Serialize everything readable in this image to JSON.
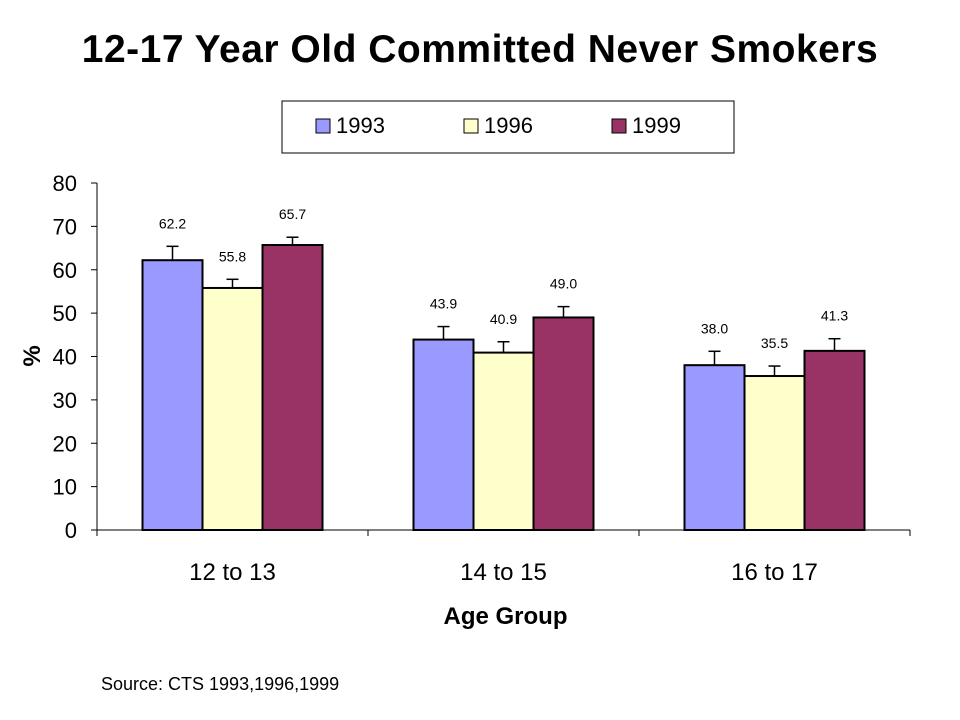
{
  "title": "12-17 Year Old Committed Never Smokers",
  "source": "Source:  CTS 1993,1996,1999",
  "chart_data": {
    "type": "bar",
    "title": "12-17 Year Old Committed Never Smokers",
    "xlabel": "Age Group",
    "ylabel": "%",
    "ylim": [
      0,
      80
    ],
    "yticks": [
      0,
      10,
      20,
      30,
      40,
      50,
      60,
      70,
      80
    ],
    "categories": [
      "12 to 13",
      "14 to 15",
      "16 to 17"
    ],
    "series": [
      {
        "name": "1993",
        "values": [
          62.2,
          43.9,
          38.0
        ],
        "labels": [
          "62.2",
          "43.9",
          "38.0"
        ],
        "error": [
          3.2,
          3.0,
          3.2
        ],
        "color": "#9999ff"
      },
      {
        "name": "1996",
        "values": [
          55.8,
          40.9,
          35.5
        ],
        "labels": [
          "55.8",
          "40.9",
          "35.5"
        ],
        "error": [
          2.0,
          2.5,
          2.3
        ],
        "color": "#ffffcc"
      },
      {
        "name": "1999",
        "values": [
          65.7,
          49.0,
          41.3
        ],
        "labels": [
          "65.7",
          "49.0",
          "41.3"
        ],
        "error": [
          1.8,
          2.5,
          2.8
        ],
        "color": "#993366"
      }
    ],
    "legend_position": "top-right",
    "grid": false
  }
}
